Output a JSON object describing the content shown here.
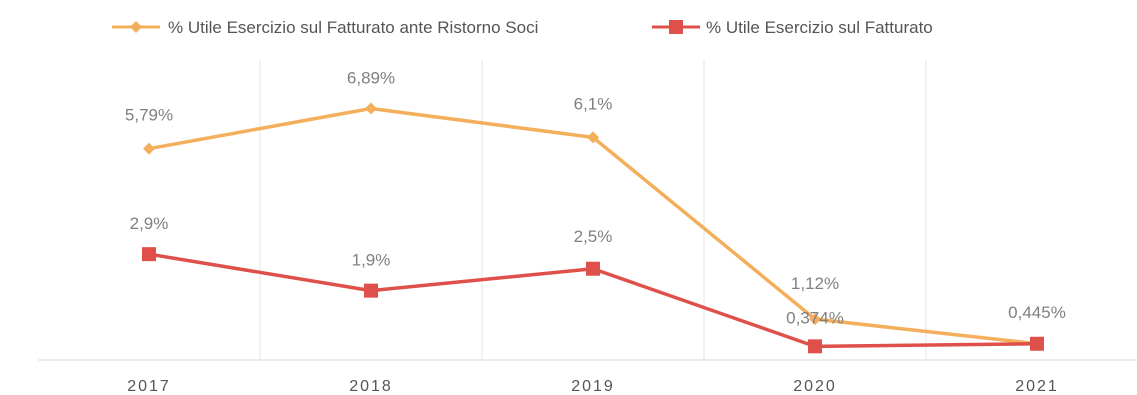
{
  "chart_data": {
    "type": "line",
    "title": "",
    "xlabel": "",
    "ylabel": "",
    "categories": [
      "2017",
      "2018",
      "2019",
      "2020",
      "2021"
    ],
    "ylim": [
      0,
      8
    ],
    "grid": "vertical",
    "legend_position": "top",
    "series": [
      {
        "name": "% Utile Esercizio sul Fatturato ante Ristorno Soci",
        "color": "#F4AF5C",
        "marker": "diamond",
        "values": [
          5.79,
          6.89,
          6.1,
          1.12,
          0.445
        ],
        "labels": [
          "5,79%",
          "6,89%",
          "6,1%",
          "1,12%",
          ""
        ]
      },
      {
        "name": "% Utile Esercizio sul Fatturato",
        "color": "#E0504A",
        "marker": "square",
        "values": [
          2.9,
          1.9,
          2.5,
          0.374,
          0.445
        ],
        "labels": [
          "2,9%",
          "1,9%",
          "2,5%",
          "0,374%",
          "0,445%"
        ]
      }
    ]
  }
}
